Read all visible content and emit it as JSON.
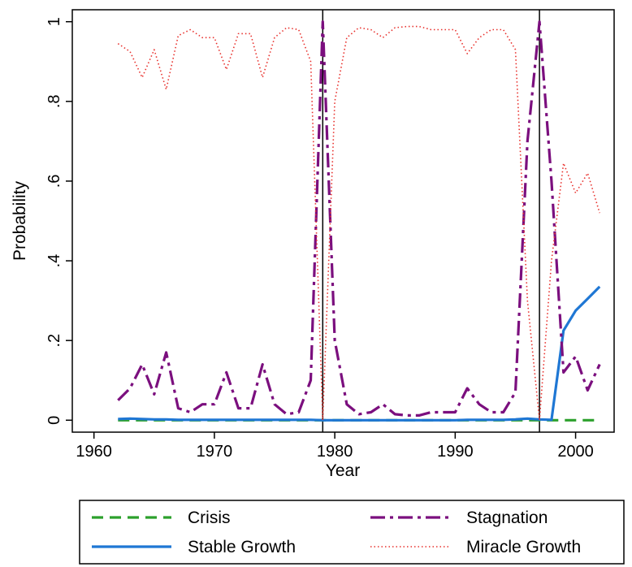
{
  "chart_data": {
    "type": "line",
    "xlabel": "Year",
    "ylabel": "Probability",
    "xlim": [
      1958.2,
      2003.2
    ],
    "ylim": [
      -0.03,
      1.03
    ],
    "x_ticks": [
      {
        "value": 1960,
        "label": "1960"
      },
      {
        "value": 1970,
        "label": "1970"
      },
      {
        "value": 1980,
        "label": "1980"
      },
      {
        "value": 1990,
        "label": "1990"
      },
      {
        "value": 2000,
        "label": "2000"
      }
    ],
    "y_ticks": [
      {
        "value": 0,
        "label": "0"
      },
      {
        "value": 0.2,
        "label": ".2"
      },
      {
        "value": 0.4,
        "label": ".4"
      },
      {
        "value": 0.6,
        "label": ".6"
      },
      {
        "value": 0.8,
        "label": ".8"
      },
      {
        "value": 1,
        "label": "1"
      }
    ],
    "vlines": [
      1979,
      1997
    ],
    "legend_position": "bottom",
    "series": [
      {
        "name": "Crisis",
        "color": "#2ca02c",
        "style": "dashed",
        "x": [
          1962,
          1963,
          1964,
          1965,
          1966,
          1967,
          1968,
          1969,
          1970,
          1971,
          1972,
          1973,
          1974,
          1975,
          1976,
          1977,
          1978,
          1979,
          1980,
          1981,
          1982,
          1983,
          1984,
          1985,
          1986,
          1987,
          1988,
          1989,
          1990,
          1991,
          1992,
          1993,
          1994,
          1995,
          1996,
          1997,
          1998,
          1999,
          2000,
          2001,
          2002
        ],
        "y": [
          0,
          0,
          0,
          0,
          0,
          0,
          0,
          0,
          0,
          0,
          0,
          0,
          0,
          0,
          0,
          0,
          0,
          0,
          0,
          0,
          0,
          0,
          0,
          0,
          0,
          0,
          0,
          0,
          0,
          0,
          0,
          0,
          0,
          0,
          0,
          0,
          0,
          0,
          0,
          0,
          0
        ]
      },
      {
        "name": "Stable Growth",
        "color": "#1f77d4",
        "style": "solid",
        "x": [
          1962,
          1963,
          1964,
          1965,
          1966,
          1967,
          1968,
          1969,
          1970,
          1971,
          1972,
          1973,
          1974,
          1975,
          1976,
          1977,
          1978,
          1979,
          1980,
          1981,
          1982,
          1983,
          1984,
          1985,
          1986,
          1987,
          1988,
          1989,
          1990,
          1991,
          1992,
          1993,
          1994,
          1995,
          1996,
          1997,
          1998,
          1999,
          2000,
          2001,
          2002
        ],
        "y": [
          0.003,
          0.004,
          0.003,
          0.002,
          0.002,
          0.001,
          0.001,
          0.001,
          0.001,
          0.001,
          0.001,
          0.001,
          0.001,
          0.001,
          0.001,
          0.001,
          0.001,
          0.0,
          0.0,
          0.0,
          0.0,
          0.0,
          0.0,
          0.0,
          0.0,
          0.0,
          0.0,
          0.0,
          0.0,
          0.001,
          0.001,
          0.001,
          0.001,
          0.002,
          0.004,
          0.002,
          0.001,
          0.225,
          0.275,
          0.305,
          0.335
        ]
      },
      {
        "name": "Stagnation",
        "color": "#7b0f7e",
        "style": "dashdot",
        "x": [
          1962,
          1963,
          1964,
          1965,
          1966,
          1967,
          1968,
          1969,
          1970,
          1971,
          1972,
          1973,
          1974,
          1975,
          1976,
          1977,
          1978,
          1979,
          1980,
          1981,
          1982,
          1983,
          1984,
          1985,
          1986,
          1987,
          1988,
          1989,
          1990,
          1991,
          1992,
          1993,
          1994,
          1995,
          1996,
          1997,
          1998,
          1999,
          2000,
          2001,
          2002
        ],
        "y": [
          0.05,
          0.08,
          0.14,
          0.065,
          0.17,
          0.03,
          0.02,
          0.04,
          0.04,
          0.12,
          0.03,
          0.03,
          0.14,
          0.04,
          0.015,
          0.02,
          0.1,
          1.0,
          0.2,
          0.04,
          0.015,
          0.02,
          0.04,
          0.015,
          0.012,
          0.012,
          0.02,
          0.02,
          0.02,
          0.08,
          0.04,
          0.02,
          0.02,
          0.07,
          0.7,
          1.0,
          0.6,
          0.12,
          0.16,
          0.075,
          0.14
        ]
      },
      {
        "name": "Miracle Growth",
        "color": "#e8302c",
        "style": "dotted",
        "x": [
          1962,
          1963,
          1964,
          1965,
          1966,
          1967,
          1968,
          1969,
          1970,
          1971,
          1972,
          1973,
          1974,
          1975,
          1976,
          1977,
          1978,
          1979,
          1980,
          1981,
          1982,
          1983,
          1984,
          1985,
          1986,
          1987,
          1988,
          1989,
          1990,
          1991,
          1992,
          1993,
          1994,
          1995,
          1996,
          1997,
          1998,
          1999,
          2000,
          2001,
          2002
        ],
        "y": [
          0.945,
          0.925,
          0.86,
          0.93,
          0.83,
          0.965,
          0.98,
          0.96,
          0.96,
          0.88,
          0.97,
          0.97,
          0.86,
          0.96,
          0.985,
          0.98,
          0.9,
          0.0,
          0.8,
          0.96,
          0.985,
          0.98,
          0.96,
          0.985,
          0.988,
          0.988,
          0.98,
          0.98,
          0.98,
          0.92,
          0.96,
          0.98,
          0.98,
          0.93,
          0.3,
          0.0,
          0.4,
          0.645,
          0.57,
          0.62,
          0.52
        ]
      }
    ]
  }
}
